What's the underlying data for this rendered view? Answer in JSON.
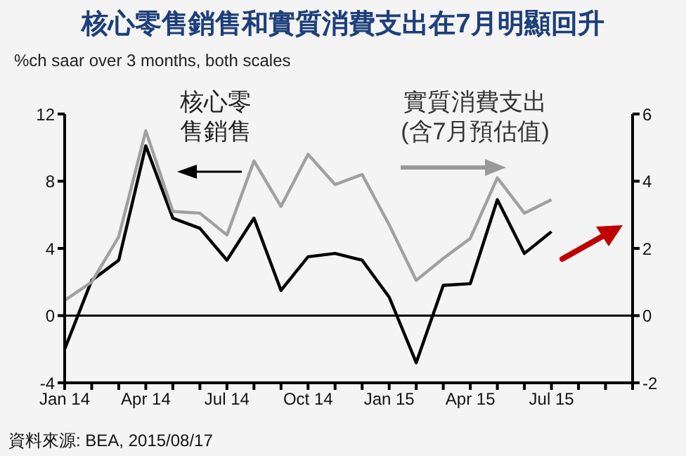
{
  "chart_data": {
    "type": "line",
    "title": "核心零售銷售和實質消費支出在7月明顯回升",
    "subtitle": "%ch saar over 3 months, both scales",
    "x": [
      "2014-01",
      "2014-02",
      "2014-03",
      "2014-04",
      "2014-05",
      "2014-06",
      "2014-07",
      "2014-08",
      "2014-09",
      "2014-10",
      "2014-11",
      "2014-12",
      "2015-01",
      "2015-02",
      "2015-03",
      "2015-04",
      "2015-05",
      "2015-06",
      "2015-07"
    ],
    "series": [
      {
        "name": "核心零售銷售",
        "color": "#000000",
        "values": [
          -2,
          2.1,
          3.3,
          10.1,
          5.8,
          5.2,
          3.3,
          5.8,
          1.5,
          3.5,
          3.7,
          3.3,
          1.1,
          -2.8,
          1.8,
          1.9,
          6.9,
          3.7,
          5.0
        ]
      },
      {
        "name": "實質消費支出(含7月預估值)",
        "color": "#a0a0a0",
        "axis": "y2",
        "values": [
          0.45,
          1.0,
          2.35,
          5.5,
          3.1,
          3.05,
          2.4,
          4.6,
          3.25,
          4.8,
          3.9,
          4.2,
          2.7,
          1.05,
          1.7,
          2.3,
          4.1,
          3.05,
          3.45
        ]
      }
    ],
    "xlim": [
      "2014-01",
      "2015-10"
    ],
    "xticks": [
      {
        "value": "2014-01",
        "label": "Jan 14"
      },
      {
        "value": "2014-02",
        "label": null
      },
      {
        "value": "2014-03",
        "label": null
      },
      {
        "value": "2014-04",
        "label": "Apr 14"
      },
      {
        "value": "2014-05",
        "label": null
      },
      {
        "value": "2014-06",
        "label": null
      },
      {
        "value": "2014-07",
        "label": "Jul 14"
      },
      {
        "value": "2014-08",
        "label": null
      },
      {
        "value": "2014-09",
        "label": null
      },
      {
        "value": "2014-10",
        "label": "Oct 14"
      },
      {
        "value": "2014-11",
        "label": null
      },
      {
        "value": "2014-12",
        "label": null
      },
      {
        "value": "2015-01",
        "label": "Jan 15"
      },
      {
        "value": "2015-02",
        "label": null
      },
      {
        "value": "2015-03",
        "label": null
      },
      {
        "value": "2015-04",
        "label": "Apr 15"
      },
      {
        "value": "2015-05",
        "label": null
      },
      {
        "value": "2015-06",
        "label": null
      },
      {
        "value": "2015-07",
        "label": "Jul 15"
      },
      {
        "value": "2015-08",
        "label": null
      },
      {
        "value": "2015-09",
        "label": null
      },
      {
        "value": "2015-10",
        "label": null
      }
    ],
    "ylim": [
      -4,
      12
    ],
    "yticks": [
      -4,
      0,
      4,
      8,
      12
    ],
    "y2lim": [
      -2,
      6
    ],
    "y2ticks": [
      -2,
      0,
      2,
      4,
      6
    ],
    "ref_lines": [
      {
        "axis": "y",
        "value": 0,
        "color": "#000000"
      }
    ],
    "grid": false,
    "legend": false,
    "marker": "none",
    "line_style": "solid",
    "annotations": [
      "資料來源: BEA, 2015/08/17"
    ]
  }
}
